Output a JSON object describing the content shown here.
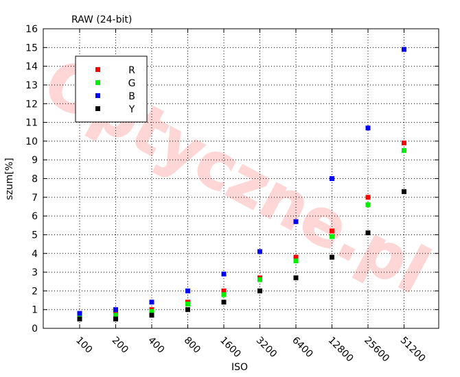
{
  "chart_data": {
    "type": "scatter",
    "title": "RAW (24-bit)",
    "xlabel": "ISO",
    "ylabel": "szum[%]",
    "categories": [
      "100",
      "200",
      "400",
      "800",
      "1600",
      "3200",
      "6400",
      "12800",
      "25600",
      "51200"
    ],
    "ylim": [
      0,
      16
    ],
    "yticks": [
      0,
      1,
      2,
      3,
      4,
      5,
      6,
      7,
      8,
      9,
      10,
      11,
      12,
      13,
      14,
      15,
      16
    ],
    "grid": true,
    "legend_position": "top-left",
    "watermark": "Optyczne.pl",
    "series": [
      {
        "name": "R",
        "color": "#ff0000",
        "values": [
          0.6,
          0.8,
          1.0,
          1.4,
          2.0,
          2.7,
          3.8,
          5.2,
          7.0,
          9.9
        ]
      },
      {
        "name": "G",
        "color": "#00ee00",
        "values": [
          0.6,
          0.7,
          0.9,
          1.3,
          1.8,
          2.6,
          3.6,
          4.9,
          6.6,
          9.5
        ]
      },
      {
        "name": "B",
        "color": "#0000ff",
        "values": [
          0.8,
          1.0,
          1.4,
          2.0,
          2.9,
          4.1,
          5.7,
          8.0,
          10.7,
          14.9
        ]
      },
      {
        "name": "Y",
        "color": "#000000",
        "values": [
          0.5,
          0.5,
          0.7,
          1.0,
          1.4,
          2.0,
          2.7,
          3.8,
          5.1,
          7.3
        ]
      }
    ]
  }
}
